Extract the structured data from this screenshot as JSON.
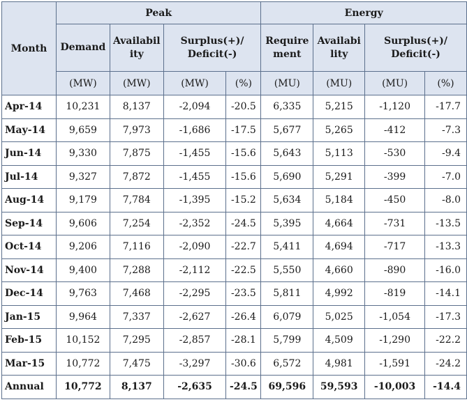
{
  "header": {
    "month": "Month",
    "peak": "Peak",
    "energy": "Energy",
    "peak_demand": "Demand",
    "peak_availability": "Availability",
    "peak_surplus": "Surplus(+)/ Deficit(-)",
    "energy_requirement": "Requirement",
    "energy_availability": "Availability",
    "energy_surplus": "Surplus(+)/ Deficit(-)"
  },
  "units": {
    "peak_demand": "(MW)",
    "peak_availability": "(MW)",
    "peak_surplus_mw": "(MW)",
    "peak_surplus_pct": "(%)",
    "energy_requirement": "(MU)",
    "energy_availability": "(MU)",
    "energy_surplus_mu": "(MU)",
    "energy_surplus_pct": "(%)"
  },
  "rows": [
    [
      "Apr-14",
      "10,231",
      "8,137",
      "-2,094",
      "-20.5",
      "6,335",
      "5,215",
      "-1,120",
      "-17.7"
    ],
    [
      "May-14",
      "9,659",
      "7,973",
      "-1,686",
      "-17.5",
      "5,677",
      "5,265",
      "-412",
      "-7.3"
    ],
    [
      "Jun-14",
      "9,330",
      "7,875",
      "-1,455",
      "-15.6",
      "5,643",
      "5,113",
      "-530",
      "-9.4"
    ],
    [
      "Jul-14",
      "9,327",
      "7,872",
      "-1,455",
      "-15.6",
      "5,690",
      "5,291",
      "-399",
      "-7.0"
    ],
    [
      "Aug-14",
      "9,179",
      "7,784",
      "-1,395",
      "-15.2",
      "5,634",
      "5,184",
      "-450",
      "-8.0"
    ],
    [
      "Sep-14",
      "9,606",
      "7,254",
      "-2,352",
      "-24.5",
      "5,395",
      "4,664",
      "-731",
      "-13.5"
    ],
    [
      "Oct-14",
      "9,206",
      "7,116",
      "-2,090",
      "-22.7",
      "5,411",
      "4,694",
      "-717",
      "-13.3"
    ],
    [
      "Nov-14",
      "9,400",
      "7,288",
      "-2,112",
      "-22.5",
      "5,550",
      "4,660",
      "-890",
      "-16.0"
    ],
    [
      "Dec-14",
      "9,763",
      "7,468",
      "-2,295",
      "-23.5",
      "5,811",
      "4,992",
      "-819",
      "-14.1"
    ],
    [
      "Jan-15",
      "9,964",
      "7,337",
      "-2,627",
      "-26.4",
      "6,079",
      "5,025",
      "-1,054",
      "-17.3"
    ],
    [
      "Feb-15",
      "10,152",
      "7,295",
      "-2,857",
      "-28.1",
      "5,799",
      "4,509",
      "-1,290",
      "-22.2"
    ],
    [
      "Mar-15",
      "10,772",
      "7,475",
      "-3,297",
      "-30.6",
      "6,572",
      "4,981",
      "-1,591",
      "-24.2"
    ]
  ],
  "annual": [
    "Annual",
    "10,772",
    "8,137",
    "-2,635",
    "-24.5",
    "69,596",
    "59,593",
    "-10,003",
    "-14.4"
  ]
}
